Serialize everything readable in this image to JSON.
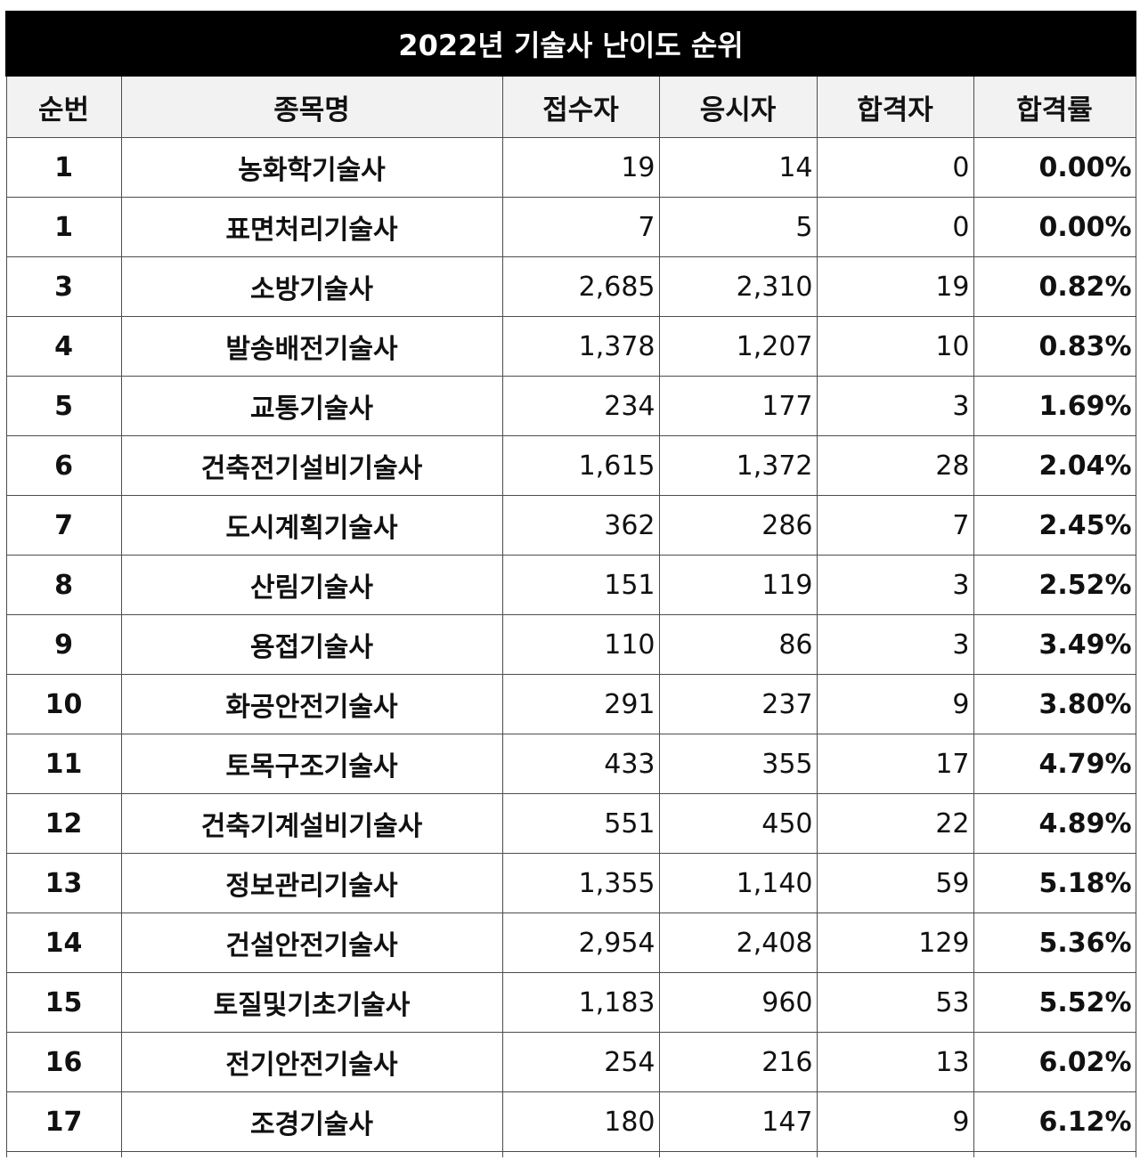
{
  "title": "2022년 기술사 난이도 순위",
  "headers": [
    "순번",
    "종목명",
    "접수자",
    "응시자",
    "합격자",
    "합격률"
  ],
  "rows": [
    {
      "rank": "1",
      "name": "농화학기술사",
      "applied": "19",
      "taken": "14",
      "passed": "0",
      "rate": "0.00%"
    },
    {
      "rank": "1",
      "name": "표면처리기술사",
      "applied": "7",
      "taken": "5",
      "passed": "0",
      "rate": "0.00%"
    },
    {
      "rank": "3",
      "name": "소방기술사",
      "applied": "2,685",
      "taken": "2,310",
      "passed": "19",
      "rate": "0.82%"
    },
    {
      "rank": "4",
      "name": "발송배전기술사",
      "applied": "1,378",
      "taken": "1,207",
      "passed": "10",
      "rate": "0.83%"
    },
    {
      "rank": "5",
      "name": "교통기술사",
      "applied": "234",
      "taken": "177",
      "passed": "3",
      "rate": "1.69%"
    },
    {
      "rank": "6",
      "name": "건축전기설비기술사",
      "applied": "1,615",
      "taken": "1,372",
      "passed": "28",
      "rate": "2.04%"
    },
    {
      "rank": "7",
      "name": "도시계획기술사",
      "applied": "362",
      "taken": "286",
      "passed": "7",
      "rate": "2.45%"
    },
    {
      "rank": "8",
      "name": "산림기술사",
      "applied": "151",
      "taken": "119",
      "passed": "3",
      "rate": "2.52%"
    },
    {
      "rank": "9",
      "name": "용접기술사",
      "applied": "110",
      "taken": "86",
      "passed": "3",
      "rate": "3.49%"
    },
    {
      "rank": "10",
      "name": "화공안전기술사",
      "applied": "291",
      "taken": "237",
      "passed": "9",
      "rate": "3.80%"
    },
    {
      "rank": "11",
      "name": "토목구조기술사",
      "applied": "433",
      "taken": "355",
      "passed": "17",
      "rate": "4.79%"
    },
    {
      "rank": "12",
      "name": "건축기계설비기술사",
      "applied": "551",
      "taken": "450",
      "passed": "22",
      "rate": "4.89%"
    },
    {
      "rank": "13",
      "name": "정보관리기술사",
      "applied": "1,355",
      "taken": "1,140",
      "passed": "59",
      "rate": "5.18%"
    },
    {
      "rank": "14",
      "name": "건설안전기술사",
      "applied": "2,954",
      "taken": "2,408",
      "passed": "129",
      "rate": "5.36%"
    },
    {
      "rank": "15",
      "name": "토질및기초기술사",
      "applied": "1,183",
      "taken": "960",
      "passed": "53",
      "rate": "5.52%"
    },
    {
      "rank": "16",
      "name": "전기안전기술사",
      "applied": "254",
      "taken": "216",
      "passed": "13",
      "rate": "6.02%"
    },
    {
      "rank": "17",
      "name": "조경기술사",
      "applied": "180",
      "taken": "147",
      "passed": "9",
      "rate": "6.12%"
    }
  ]
}
